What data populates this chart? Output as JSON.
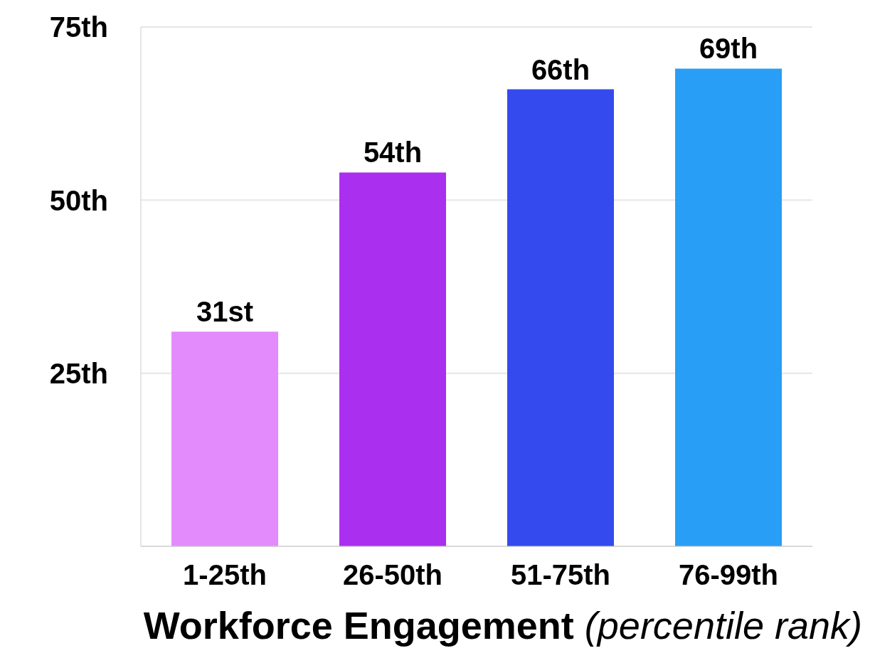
{
  "chart_data": {
    "type": "bar",
    "xlabel": "Workforce Engagement (percentile rank)",
    "categories": [
      "1-25th",
      "26-50th",
      "51-75th",
      "76-99th"
    ],
    "values": [
      31,
      54,
      66,
      69
    ],
    "colors": [
      "#e38afc",
      "#ab2fee",
      "#344aee",
      "#299ef6"
    ],
    "value_labels": [
      "31st",
      "54th",
      "66th",
      "69th"
    ],
    "ylim": [
      0,
      75
    ],
    "yticks": [
      {
        "value": 25,
        "label": "25th"
      },
      {
        "value": 50,
        "label": "50th"
      },
      {
        "value": 75,
        "label": "75th"
      }
    ],
    "grid": "y"
  }
}
